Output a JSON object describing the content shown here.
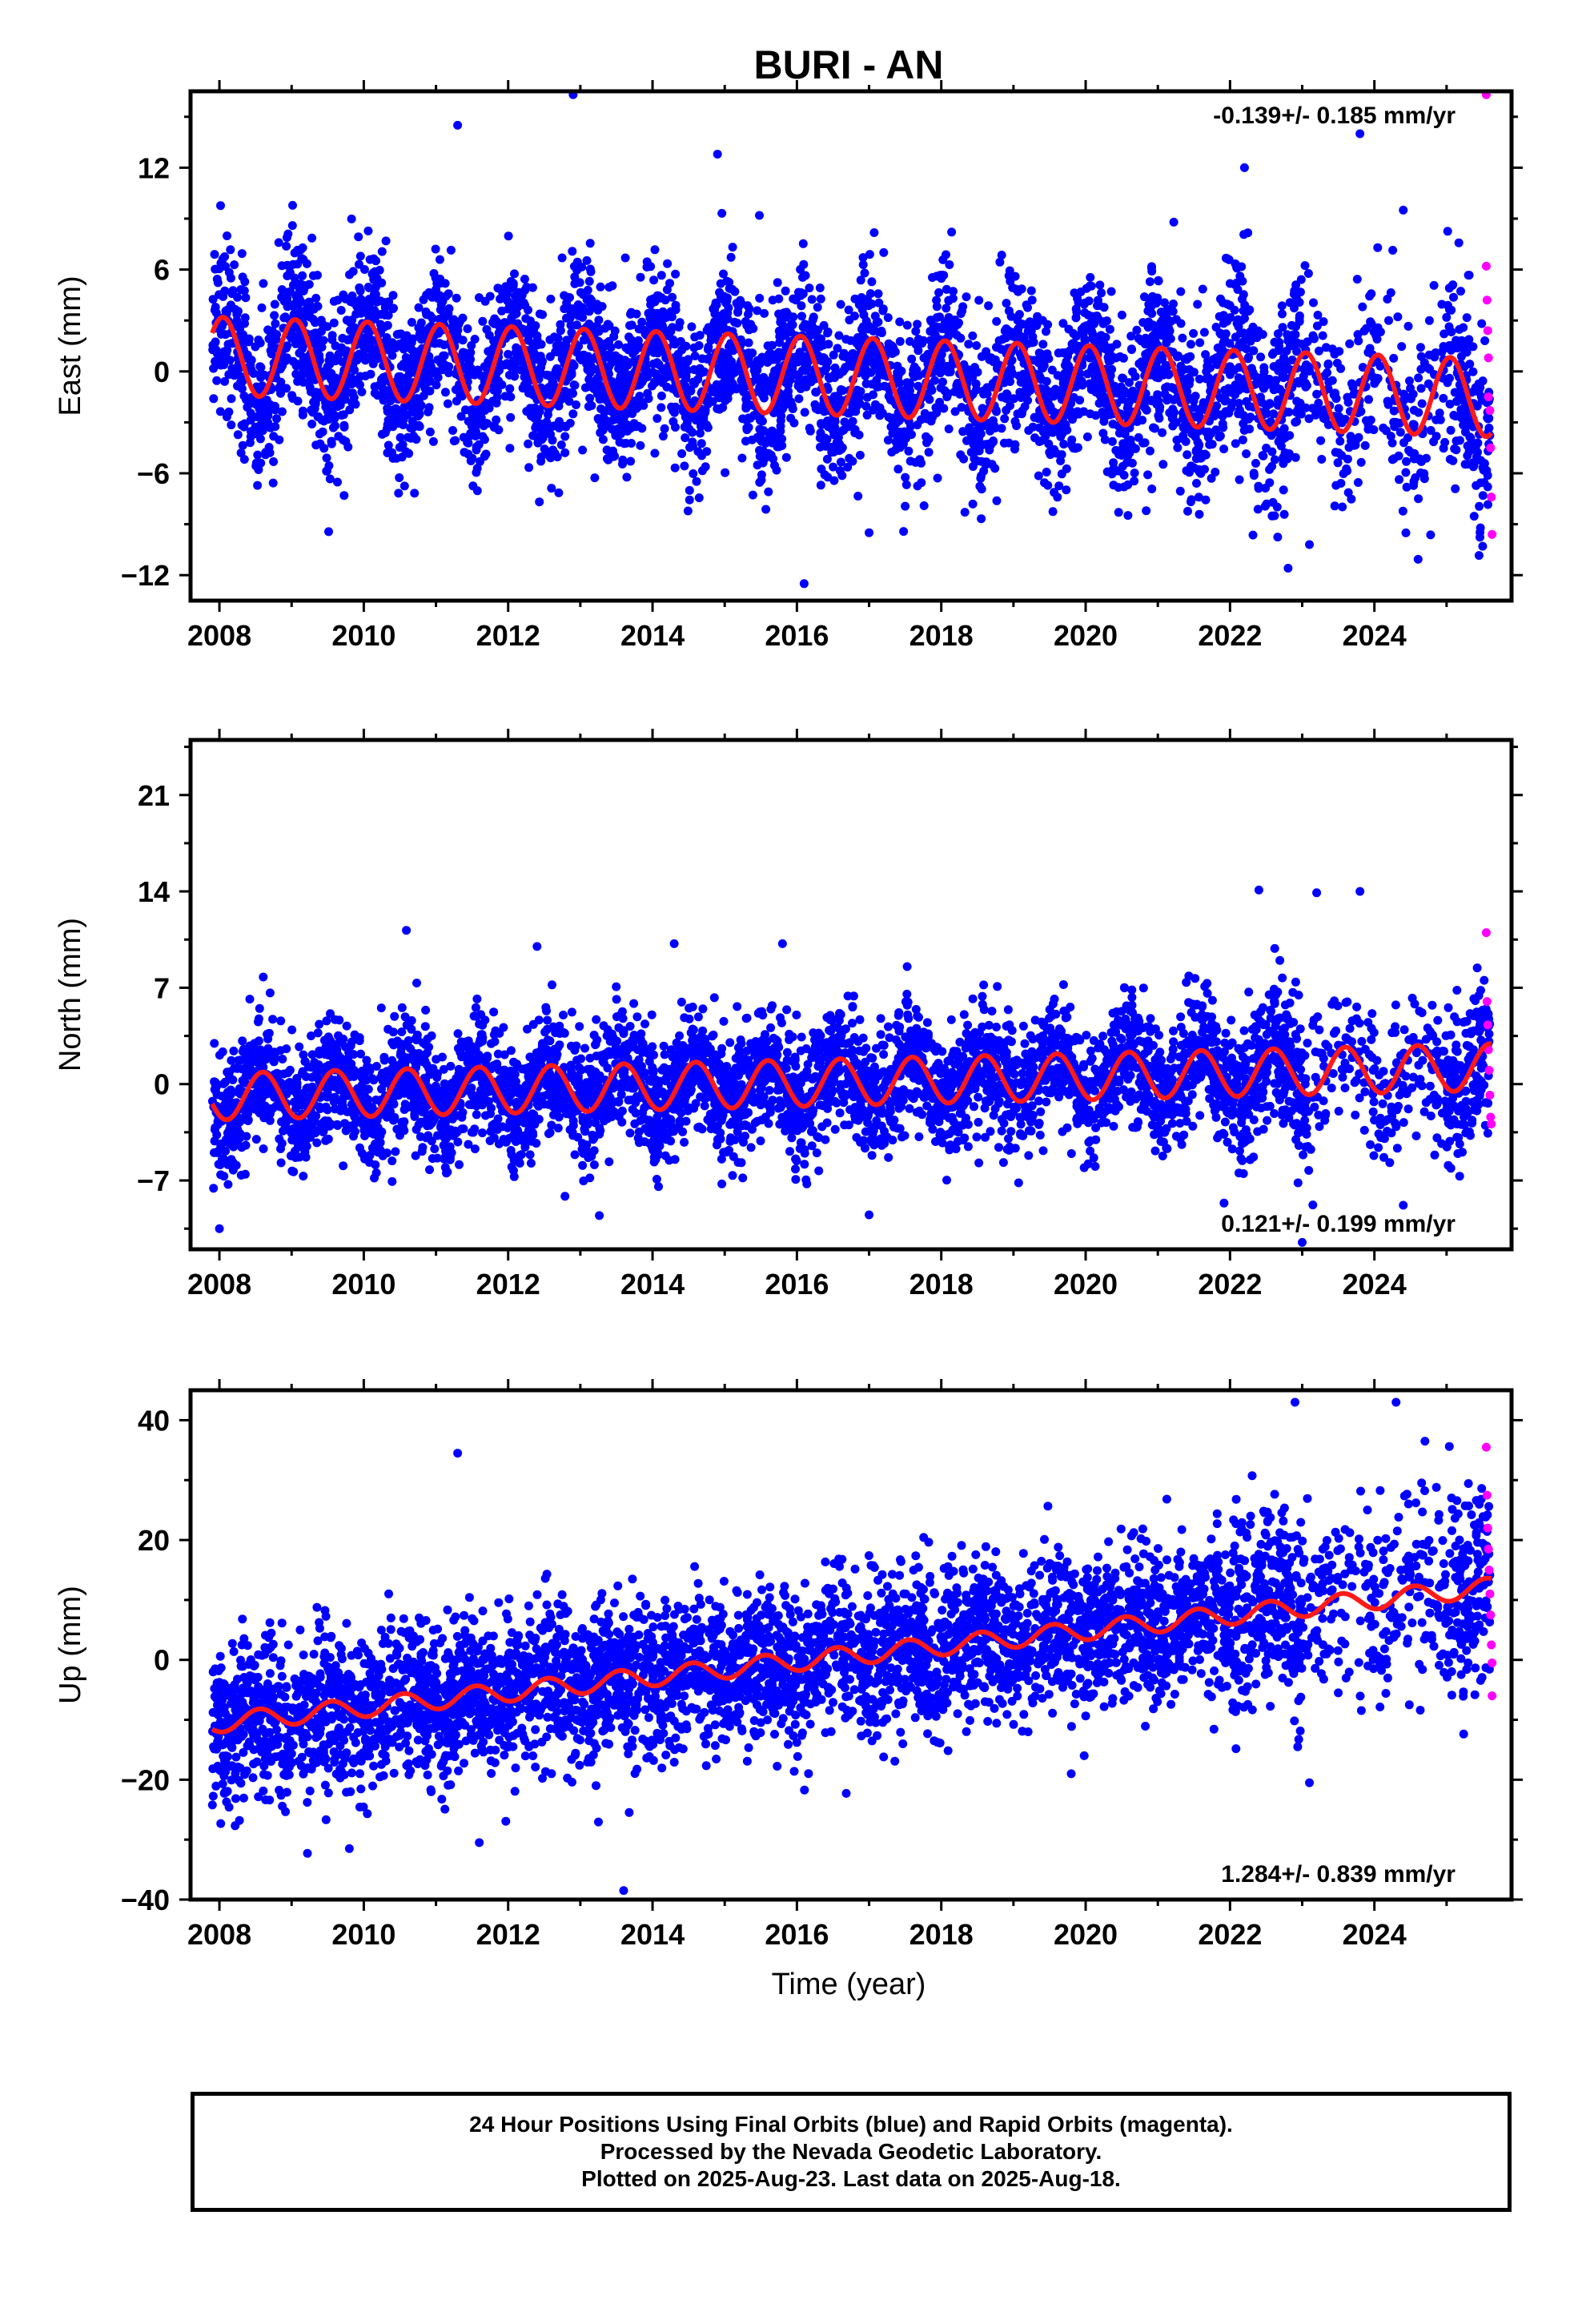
{
  "title": "BURI - AN",
  "xlabel": "Time (year)",
  "colors": {
    "final": "#0000ff",
    "rapid": "#ff00ff",
    "model": "#ff1a1a",
    "axis": "#000000"
  },
  "chart_data": [
    {
      "type": "scatter",
      "panel": "east",
      "ylabel": "East (mm)",
      "rate_label": "-0.139+/- 0.185 mm/yr",
      "rate_position": "top-right",
      "xlim": [
        2007.6,
        2025.9
      ],
      "ylim": [
        -13.5,
        16.5
      ],
      "xticks": [
        2008,
        2010,
        2012,
        2014,
        2016,
        2018,
        2020,
        2022,
        2024
      ],
      "yticks": [
        -12,
        -6,
        0,
        6,
        12
      ],
      "ytick_labels": [
        "−12",
        "−6",
        "0",
        "6",
        "12"
      ],
      "model": {
        "offset": 0.9,
        "trend": -0.139,
        "amplitude": 2.3,
        "phase_year": 0.8
      },
      "scatter_sd": 2.4,
      "n_points": 5000,
      "outliers": [
        [
          2011.3,
          14.5
        ],
        [
          2012.9,
          16.3
        ],
        [
          2014.9,
          12.8
        ],
        [
          2022.2,
          12.0
        ],
        [
          2023.8,
          14.0
        ],
        [
          2024.4,
          9.5
        ],
        [
          2016.1,
          -12.5
        ],
        [
          2017.0,
          -9.5
        ],
        [
          2023.1,
          -10.2
        ],
        [
          2025.5,
          -10.3
        ]
      ],
      "rapid_points": [
        [
          2025.55,
          16.3
        ],
        [
          2025.55,
          6.2
        ],
        [
          2025.56,
          4.2
        ],
        [
          2025.57,
          2.4
        ],
        [
          2025.58,
          0.8
        ],
        [
          2025.58,
          -1.5
        ],
        [
          2025.6,
          -2.3
        ],
        [
          2025.61,
          -4.5
        ],
        [
          2025.62,
          -7.4
        ],
        [
          2025.63,
          -9.6
        ]
      ],
      "title": ""
    },
    {
      "type": "scatter",
      "panel": "north",
      "ylabel": "North (mm)",
      "rate_label": "0.121+/- 0.199 mm/yr",
      "rate_position": "bottom-right",
      "xlim": [
        2007.6,
        2025.9
      ],
      "ylim": [
        -12,
        25
      ],
      "xticks": [
        2008,
        2010,
        2012,
        2014,
        2016,
        2018,
        2020,
        2022,
        2024
      ],
      "yticks": [
        -7,
        0,
        7,
        14,
        21
      ],
      "ytick_labels": [
        "−7",
        "0",
        "7",
        "14",
        "21"
      ],
      "model": {
        "offset": -0.9,
        "trend": 0.121,
        "amplitude": 1.7,
        "phase_year": 0.35
      },
      "scatter_sd": 2.2,
      "n_points": 5000,
      "outliers": [
        [
          2008.0,
          -10.5
        ],
        [
          2012.4,
          10.0
        ],
        [
          2014.3,
          10.2
        ],
        [
          2015.8,
          10.2
        ],
        [
          2022.4,
          14.1
        ],
        [
          2023.2,
          13.9
        ],
        [
          2023.8,
          14.0
        ],
        [
          2017.0,
          -9.5
        ],
        [
          2023.0,
          -11.5
        ],
        [
          2024.4,
          -8.8
        ]
      ],
      "rapid_points": [
        [
          2025.55,
          11.0
        ],
        [
          2025.56,
          6.0
        ],
        [
          2025.57,
          4.3
        ],
        [
          2025.58,
          2.5
        ],
        [
          2025.59,
          1.0
        ],
        [
          2025.6,
          -0.8
        ],
        [
          2025.61,
          -2.4
        ],
        [
          2025.62,
          -2.9
        ]
      ],
      "title": ""
    },
    {
      "type": "scatter",
      "panel": "up",
      "ylabel": "Up (mm)",
      "rate_label": "1.284+/- 0.839 mm/yr",
      "rate_position": "bottom-right",
      "xlim": [
        2007.6,
        2025.9
      ],
      "ylim": [
        -40,
        45
      ],
      "xticks": [
        2008,
        2010,
        2012,
        2014,
        2016,
        2018,
        2020,
        2022,
        2024
      ],
      "yticks": [
        -40,
        -20,
        0,
        20,
        40
      ],
      "ytick_labels": [
        "−40",
        "−20",
        "0",
        "20",
        "40"
      ],
      "model": {
        "offset": -10.5,
        "trend": 1.284,
        "amplitude": 1.6,
        "phase_year": 0.3
      },
      "scatter_sd": 6.5,
      "n_points": 5000,
      "outliers": [
        [
          2011.3,
          34.5
        ],
        [
          2013.6,
          -38.5
        ],
        [
          2011.6,
          -30.5
        ],
        [
          2009.8,
          -31.5
        ],
        [
          2022.9,
          43.0
        ],
        [
          2024.3,
          43.0
        ],
        [
          2023.1,
          -20.5
        ],
        [
          2019.8,
          -19.0
        ],
        [
          2024.7,
          36.5
        ]
      ],
      "rapid_points": [
        [
          2025.55,
          35.5
        ],
        [
          2025.56,
          27.5
        ],
        [
          2025.57,
          22.0
        ],
        [
          2025.58,
          18.5
        ],
        [
          2025.59,
          15.0
        ],
        [
          2025.6,
          11.0
        ],
        [
          2025.61,
          7.5
        ],
        [
          2025.62,
          2.5
        ],
        [
          2025.63,
          -0.5
        ],
        [
          2025.63,
          -6.0
        ]
      ],
      "title": ""
    }
  ],
  "footer": {
    "line1": "24 Hour Positions Using Final Orbits (blue) and Rapid Orbits (magenta).",
    "line2": "Processed by the Nevada Geodetic Laboratory.",
    "line3": "Plotted on 2025-Aug-23. Last data on 2025-Aug-18."
  }
}
